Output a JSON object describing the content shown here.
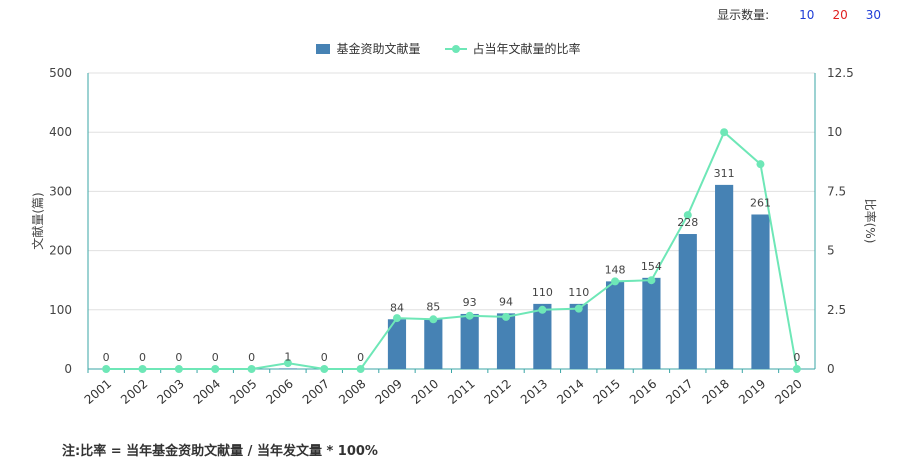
{
  "topbar": {
    "label": "显示数量:",
    "options": [
      {
        "label": "10",
        "color": "#1e3cd6"
      },
      {
        "label": "20",
        "color": "#e01e1e"
      },
      {
        "label": "30",
        "color": "#1e3cd6"
      }
    ]
  },
  "legend": {
    "bar_label": "基金资助文献量",
    "line_label": "占当年文献量的比率"
  },
  "colors": {
    "bar": "#4682b4",
    "line": "#6ee7b7",
    "axis": "#3aa6a6",
    "grid": "#e0e0e0"
  },
  "note": "注:比率 = 当年基金资助文献量 / 当年发文量 * 100%",
  "chart_data": {
    "type": "bar",
    "categories": [
      "2001",
      "2002",
      "2003",
      "2004",
      "2005",
      "2006",
      "2007",
      "2008",
      "2009",
      "2010",
      "2011",
      "2012",
      "2013",
      "2014",
      "2015",
      "2016",
      "2017",
      "2018",
      "2019",
      "2020"
    ],
    "series": [
      {
        "name": "基金资助文献量",
        "type": "bar",
        "axis": "left",
        "values": [
          0,
          0,
          0,
          0,
          0,
          1,
          0,
          0,
          84,
          85,
          93,
          94,
          110,
          110,
          148,
          154,
          228,
          311,
          261,
          0
        ]
      },
      {
        "name": "占当年文献量的比率",
        "type": "line",
        "axis": "right",
        "values": [
          0,
          0,
          0,
          0,
          0,
          0.25,
          0,
          0,
          2.15,
          2.1,
          2.25,
          2.2,
          2.5,
          2.55,
          3.7,
          3.75,
          6.5,
          10.0,
          8.65,
          0
        ]
      }
    ],
    "data_labels": [
      "0",
      "0",
      "0",
      "0",
      "0",
      "1",
      "0",
      "0",
      "84",
      "85",
      "93",
      "94",
      "110",
      "110",
      "148",
      "154",
      "228",
      "311",
      "261",
      "0"
    ],
    "ylabel": "文献量(篇)",
    "ylabel_right": "比率(%)",
    "ylim": [
      0,
      500
    ],
    "ylim_right": [
      0,
      12.5
    ],
    "yticks": [
      "0",
      "100",
      "200",
      "300",
      "400",
      "500"
    ],
    "yticks_right": [
      "0",
      "2.5",
      "5",
      "7.5",
      "10",
      "12.5"
    ],
    "grid": true,
    "legend_position": "top-center"
  }
}
